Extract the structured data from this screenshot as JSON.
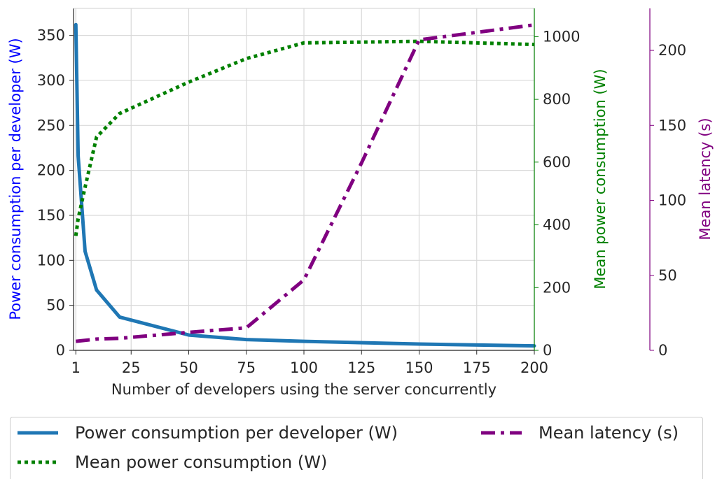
{
  "chart_data": {
    "type": "line",
    "xlabel": "Number of developers using the server concurrently",
    "xlim": [
      0,
      200
    ],
    "x_ticks": [
      1,
      25,
      50,
      75,
      100,
      125,
      150,
      175,
      200
    ],
    "axes": [
      {
        "id": "left",
        "label": "Power consumption per developer (W)",
        "color": "#0000ff",
        "ylim": [
          0,
          380
        ],
        "ticks": [
          0,
          50,
          100,
          150,
          200,
          250,
          300,
          350
        ]
      },
      {
        "id": "right",
        "label": "Mean power consumption (W)",
        "color": "#008000",
        "ylim": [
          0,
          1090
        ],
        "ticks": [
          0,
          200,
          400,
          600,
          800,
          1000
        ]
      },
      {
        "id": "right2",
        "label": "Mean latency (s)",
        "color": "#800080",
        "ylim": [
          0,
          228
        ],
        "ticks": [
          0,
          50,
          100,
          150,
          200
        ]
      }
    ],
    "series": [
      {
        "name": "Power consumption per developer (W)",
        "axis": "left",
        "color": "#1f77b4",
        "style": "solid",
        "x": [
          1,
          2,
          5,
          10,
          20,
          50,
          75,
          100,
          150,
          200
        ],
        "y": [
          362,
          216,
          110,
          67,
          37,
          17,
          12,
          10,
          7,
          5
        ]
      },
      {
        "name": "Mean power consumption (W)",
        "axis": "right",
        "color": "#008000",
        "style": "dotted",
        "x": [
          1,
          2,
          5,
          10,
          20,
          50,
          75,
          100,
          150,
          200
        ],
        "y": [
          365,
          420,
          520,
          680,
          755,
          855,
          930,
          980,
          985,
          975
        ]
      },
      {
        "name": "Mean latency (s)",
        "axis": "right2",
        "color": "#800080",
        "style": "dashdot",
        "x": [
          1,
          10,
          20,
          50,
          75,
          100,
          125,
          150,
          200
        ],
        "y": [
          6,
          7.5,
          8,
          12,
          15,
          47,
          125,
          207,
          217
        ]
      }
    ],
    "grid": true,
    "legend": {
      "position": "bottom",
      "columns": 2
    }
  }
}
